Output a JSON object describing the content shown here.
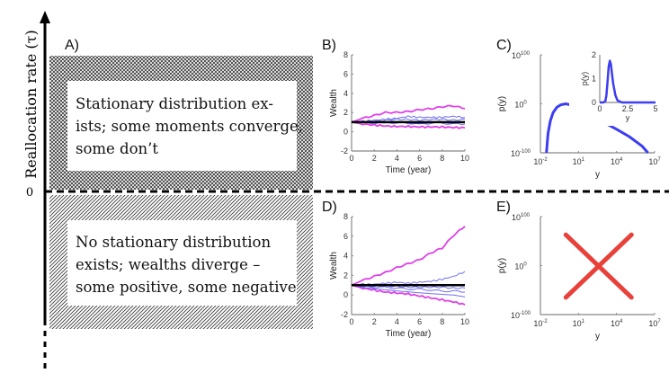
{
  "axis": {
    "label": "Reallocation rate (τ)",
    "zero_label": "0"
  },
  "panelA": {
    "label": "A)",
    "upper_text": [
      "Stationary distribution ex-",
      "ists; some moments converge,",
      "some don’t"
    ],
    "lower_text": [
      "No stationary distribution",
      "exists; wealths diverge –",
      "some positive, some negative"
    ]
  },
  "chart_data": [
    {
      "panel": "B)",
      "type": "line",
      "xlabel": "Time (year)",
      "ylabel": "Wealth",
      "xlim": [
        0,
        10
      ],
      "ylim": [
        -2,
        8
      ],
      "xticks": [
        "0",
        "2",
        "4",
        "6",
        "8",
        "10"
      ],
      "yticks": [
        "-2",
        "0",
        "2",
        "4",
        "6",
        "8"
      ],
      "x": [
        0,
        1,
        2,
        3,
        4,
        5,
        6,
        7,
        8,
        9,
        10
      ],
      "series": [
        {
          "color": "#e040e8",
          "values": [
            1,
            1.4,
            1.7,
            2.0,
            2.0,
            2.1,
            2.3,
            2.4,
            2.6,
            2.7,
            2.4
          ]
        },
        {
          "color": "#e040e8",
          "values": [
            1,
            0.8,
            0.7,
            0.6,
            0.55,
            0.55,
            0.5,
            0.5,
            0.5,
            0.45,
            0.4
          ]
        },
        {
          "color": "#6f6ff0",
          "values": [
            1,
            1.1,
            1.2,
            1.3,
            1.4,
            1.6,
            1.5,
            1.5,
            1.5,
            1.6,
            1.5
          ]
        },
        {
          "color": "#6f6ff0",
          "values": [
            1,
            1.0,
            1.1,
            1.2,
            1.3,
            1.3,
            1.2,
            1.3,
            1.3,
            1.2,
            1.3
          ]
        },
        {
          "color": "#6f6ff0",
          "values": [
            1,
            0.9,
            0.9,
            1.0,
            0.9,
            0.9,
            0.8,
            0.9,
            0.9,
            0.8,
            0.8
          ]
        },
        {
          "color": "#4040d0",
          "values": [
            1,
            1.0,
            1.0,
            1.0,
            1.1,
            1.0,
            0.9,
            1.0,
            1.0,
            0.9,
            1.0
          ]
        },
        {
          "color": "#000000",
          "values": [
            1,
            1,
            1,
            1,
            1,
            1,
            1,
            1,
            1,
            1,
            1
          ]
        }
      ]
    },
    {
      "panel": "C)",
      "type": "line",
      "xlabel": "y",
      "ylabel": "p(y)",
      "xscale": "log",
      "yscale": "log",
      "xlim": [
        0.01,
        10000000
      ],
      "ylim": [
        1e-100,
        1e+100
      ],
      "xticks": [
        {
          "base": "10",
          "exp": "-2"
        },
        {
          "base": "10",
          "exp": "1"
        },
        {
          "base": "10",
          "exp": "4"
        },
        {
          "base": "10",
          "exp": "7"
        }
      ],
      "yticks": [
        {
          "base": "10",
          "exp": "-100"
        },
        {
          "base": "10",
          "exp": "0"
        },
        {
          "base": "10",
          "exp": "100"
        }
      ],
      "color": "#3d3df2",
      "x": [
        0.03,
        0.04,
        0.06,
        0.1,
        0.2,
        0.4,
        1,
        3,
        10,
        100,
        1000,
        10000,
        100000,
        1000000,
        3000000
      ],
      "y": [
        1e-100,
        1e-60,
        1e-35,
        1e-18,
        1e-07,
        0.01,
        1,
        0.001,
        1e-10,
        1e-24,
        1e-38,
        1e-52,
        1e-67,
        1e-86,
        1e-100
      ],
      "inset": {
        "type": "line",
        "xlabel": "y",
        "ylabel": "p(y)",
        "xlim": [
          0,
          5
        ],
        "ylim": [
          0,
          2
        ],
        "xticks": [
          "0",
          "2.5",
          "5"
        ],
        "yticks": [
          "0",
          "1",
          "2"
        ],
        "x": [
          0,
          0.3,
          0.5,
          0.6,
          0.7,
          0.8,
          0.9,
          1.0,
          1.1,
          1.2,
          1.4,
          1.6,
          2.0,
          2.5,
          5
        ],
        "y": [
          0,
          0,
          0.05,
          0.3,
          0.9,
          1.5,
          1.75,
          1.6,
          1.2,
          0.8,
          0.3,
          0.08,
          0,
          0,
          0
        ]
      }
    },
    {
      "panel": "D)",
      "type": "line",
      "xlabel": "Time (year)",
      "ylabel": "Wealth",
      "xlim": [
        0,
        10
      ],
      "ylim": [
        -2,
        8
      ],
      "xticks": [
        "0",
        "2",
        "4",
        "6",
        "8",
        "10"
      ],
      "yticks": [
        "-2",
        "0",
        "2",
        "4",
        "6",
        "8"
      ],
      "x": [
        0,
        1,
        2,
        3,
        4,
        5,
        6,
        7,
        8,
        9,
        10
      ],
      "series": [
        {
          "color": "#e040e8",
          "values": [
            1,
            1.5,
            1.9,
            2.3,
            2.8,
            3.2,
            3.6,
            4.3,
            4.8,
            6.1,
            7.0
          ]
        },
        {
          "color": "#e040e8",
          "values": [
            1,
            0.7,
            0.5,
            0.3,
            0.2,
            0.1,
            -0.1,
            -0.3,
            -0.5,
            -0.7,
            -1.0
          ]
        },
        {
          "color": "#6f6ff0",
          "values": [
            1,
            1.1,
            1.1,
            1.2,
            1.3,
            1.2,
            1.3,
            1.4,
            1.6,
            1.9,
            2.4
          ]
        },
        {
          "color": "#6f6ff0",
          "values": [
            1,
            0.9,
            0.9,
            0.9,
            0.9,
            0.8,
            0.8,
            0.8,
            0.8,
            0.7,
            0.7
          ]
        },
        {
          "color": "#6f6ff0",
          "values": [
            1,
            0.9,
            0.8,
            0.8,
            0.7,
            0.6,
            0.6,
            0.5,
            0.4,
            0.4,
            0.3
          ]
        },
        {
          "color": "#6f6ff0",
          "values": [
            1,
            0.8,
            0.7,
            0.6,
            0.5,
            0.4,
            0.3,
            0.2,
            0.1,
            0.0,
            -0.2
          ]
        },
        {
          "color": "#000000",
          "values": [
            1,
            1,
            1,
            1,
            1,
            1,
            1,
            1,
            1,
            1,
            1
          ]
        }
      ]
    },
    {
      "panel": "E)",
      "type": "line",
      "xlabel": "y",
      "ylabel": "p(y)",
      "xscale": "log",
      "yscale": "log",
      "xlim": [
        0.01,
        10000000
      ],
      "ylim": [
        1e-100,
        1e+100
      ],
      "xticks": [
        {
          "base": "10",
          "exp": "-2"
        },
        {
          "base": "10",
          "exp": "1"
        },
        {
          "base": "10",
          "exp": "4"
        },
        {
          "base": "10",
          "exp": "7"
        }
      ],
      "yticks": [
        {
          "base": "10",
          "exp": "-100"
        },
        {
          "base": "10",
          "exp": "0"
        },
        {
          "base": "10",
          "exp": "100"
        }
      ],
      "annotation": {
        "marker": "cross",
        "meaning": "no stationary distribution",
        "color": "#e8413a"
      }
    }
  ]
}
